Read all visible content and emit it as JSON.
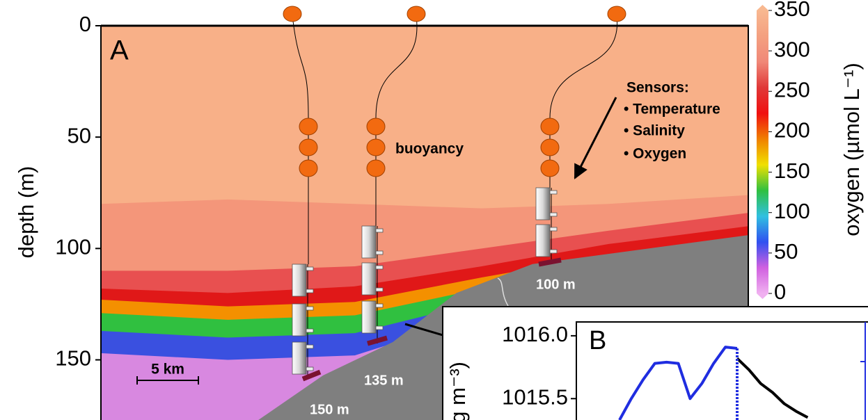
{
  "chart_data": [
    {
      "type": "contour",
      "panel_label": "A",
      "ylabel": "depth (m)",
      "ylim": [
        0,
        177
      ],
      "yticks": [
        0,
        50,
        100,
        150
      ],
      "xlim": [
        0,
        51
      ],
      "x": [
        0,
        10,
        20,
        30,
        40,
        51
      ],
      "background_color": "#f8b088",
      "contours": [
        {
          "level": 300,
          "color": "#f4967a",
          "depth": [
            80,
            78,
            80,
            82,
            80,
            76
          ]
        },
        {
          "level": 250,
          "color": "#e85050",
          "depth": [
            110,
            110,
            108,
            100,
            92,
            84
          ]
        },
        {
          "level": 200,
          "color": "#e01818",
          "depth": [
            118,
            120,
            117,
            108,
            98,
            90
          ]
        },
        {
          "level": 150,
          "color": "#f49000",
          "depth": [
            123,
            126,
            124,
            113,
            103,
            95
          ]
        },
        {
          "level": 100,
          "color": "#30c040",
          "depth": [
            129,
            132,
            130,
            118,
            108,
            100
          ]
        },
        {
          "level": 50,
          "color": "#3a50e0",
          "depth": [
            137,
            140,
            138,
            124,
            113,
            105
          ]
        },
        {
          "level": 25,
          "color": "#d888e0",
          "depth": [
            147,
            150,
            148,
            130,
            118,
            110
          ]
        }
      ],
      "bathymetry": {
        "color": "#7f7f7f",
        "x": [
          12.4,
          17.5,
          23,
          28,
          34,
          51
        ],
        "depth": [
          177,
          157,
          142,
          120,
          107,
          94
        ]
      },
      "colorbar": {
        "label": "oxygen (µmol L⁻¹)",
        "lim": [
          0,
          350
        ],
        "ticks": [
          0,
          50,
          100,
          150,
          200,
          250,
          300,
          350
        ],
        "colors": [
          "#f0b0f0",
          "#d060e0",
          "#3050f0",
          "#30c0e0",
          "#30c040",
          "#f0e000",
          "#f08000",
          "#f01010",
          "#e03838",
          "#f08878",
          "#f4a080",
          "#f8b890"
        ]
      },
      "moorings": [
        {
          "depth_label": "150 m"
        },
        {
          "depth_label": "135 m"
        },
        {
          "depth_label": "100 m"
        }
      ],
      "annotations": {
        "buoyancy": "buoyancy",
        "sensors_title": "Sensors:",
        "sensors": [
          "• Temperature",
          "• Salinity",
          "• Oxygen"
        ],
        "scale_bar": "5 km"
      }
    },
    {
      "type": "line",
      "panel_label": "B",
      "ylabel": "g m⁻³)",
      "ylim": [
        1015.33,
        1016.11
      ],
      "yticks": [
        {
          "value": 1016,
          "label": "1016.0"
        },
        1015.5
      ],
      "categories": [
        null,
        null,
        null,
        null,
        null,
        null,
        null,
        null,
        null,
        null,
        null,
        null,
        null,
        null,
        null,
        null,
        null
      ],
      "series": [
        {
          "color": "#1f2de0",
          "values": [
            1015.33,
            1015.5,
            1015.65,
            1015.78,
            1015.79,
            1015.78,
            1015.5,
            1015.62,
            1015.78,
            1015.91,
            1015.9,
            null,
            null,
            null,
            null,
            null,
            null
          ]
        },
        {
          "color": "#000000",
          "values": [
            null,
            null,
            null,
            null,
            null,
            null,
            null,
            null,
            null,
            null,
            1015.82,
            1015.73,
            1015.62,
            1015.55,
            1015.46,
            1015.4,
            1015.35
          ]
        }
      ]
    }
  ]
}
